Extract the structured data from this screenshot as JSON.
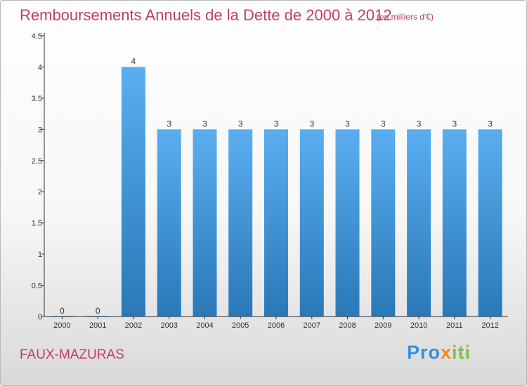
{
  "title": "Remboursements Annuels de la Dette de 2000 à 2012",
  "unit_note": "(en milliers d'€)",
  "commune": "FAUX-MAZURAS",
  "brand": {
    "part1": "Pro",
    "part2": "x",
    "part3": "iti"
  },
  "colors": {
    "title": "#c23c6e",
    "bar_top": "#5aaef0",
    "bar_bottom": "#2a78b8",
    "axis": "#333333"
  },
  "chart_data": {
    "type": "bar",
    "title": "Remboursements Annuels de la Dette de 2000 à 2012",
    "unit": "(en milliers d'€)",
    "xlabel": "",
    "ylabel": "",
    "categories": [
      "2000",
      "2001",
      "2002",
      "2003",
      "2004",
      "2005",
      "2006",
      "2007",
      "2008",
      "2009",
      "2010",
      "2011",
      "2012"
    ],
    "values": [
      0,
      0,
      4,
      3,
      3,
      3,
      3,
      3,
      3,
      3,
      3,
      3,
      3
    ],
    "data_labels": [
      "0",
      "0",
      "4",
      "3",
      "3",
      "3",
      "3",
      "3",
      "3",
      "3",
      "3",
      "3",
      "3"
    ],
    "ylim": [
      0,
      4.5
    ],
    "yticks": [
      0,
      0.5,
      1,
      1.5,
      2,
      2.5,
      3,
      3.5,
      4,
      4.5
    ],
    "ytick_labels": [
      "0",
      "0.5",
      "1",
      "1.5",
      "2",
      "2.5",
      "3",
      "3.5",
      "4",
      "4.5"
    ],
    "grid": false,
    "legend": "none"
  }
}
